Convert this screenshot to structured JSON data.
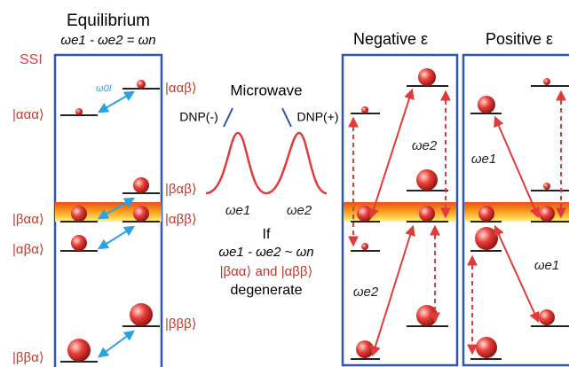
{
  "header": {
    "title": "Equilibrium",
    "condition": "ωe1 - ωe2 = ωn",
    "ssi": "SSI"
  },
  "levels": {
    "aaa": "|ααα⟩",
    "aab": "|ααβ⟩",
    "bab": "|βαβ⟩",
    "baa": "|βαα⟩",
    "abb": "|αββ⟩",
    "aba": "|αβα⟩",
    "bbb": "|βββ⟩",
    "bba": "|ββα⟩"
  },
  "arrow_label": "ω0I",
  "microwave": {
    "title": "Microwave",
    "dnp_minus": "DNP(-)",
    "dnp_plus": "DNP(+)",
    "peak1": "ωe1",
    "peak2": "ωe2"
  },
  "condition_text": {
    "line1": "If",
    "line2": "ωe1 - ωe2 ~ ωn",
    "line3": "|βαα⟩ and |αββ⟩",
    "line4": "degenerate"
  },
  "panels": [
    {
      "title": "Negative ε",
      "labels": [
        "ωe2",
        "ωe2"
      ]
    },
    {
      "title": "Positive ε",
      "labels": [
        "ωe1",
        "ωe1"
      ]
    }
  ]
}
